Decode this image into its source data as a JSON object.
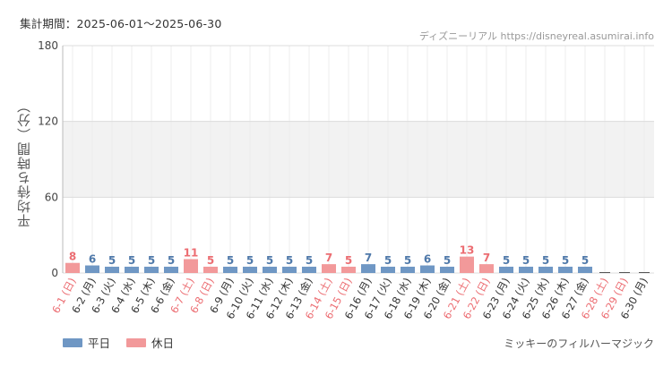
{
  "header": {
    "period": "集計期間：2025-06-01～2025-06-30",
    "source": "ディズニーリアル https://disneyreal.asumirai.info"
  },
  "footer": {
    "attraction": "ミッキーのフィルハーマジック"
  },
  "colors": {
    "weekday": "#6f97c4",
    "holiday": "#f2999a",
    "weekday_label": "#4f79aa",
    "holiday_label": "#ec6d72",
    "band": "#f2f2f2",
    "grid": "#dcdcdc"
  },
  "chart_data": {
    "type": "bar",
    "ylabel": "平均待ち時間（分）",
    "ylim": [
      0,
      180
    ],
    "yticks": [
      0,
      60,
      120,
      180
    ],
    "band": [
      60,
      120
    ],
    "grid": true,
    "legend_position": "bottom-left",
    "categories": [
      "6-1 (日)",
      "6-2 (月)",
      "6-3 (火)",
      "6-4 (水)",
      "6-5 (木)",
      "6-6 (金)",
      "6-7 (土)",
      "6-8 (日)",
      "6-9 (月)",
      "6-10 (火)",
      "6-11 (水)",
      "6-12 (木)",
      "6-13 (金)",
      "6-14 (土)",
      "6-15 (日)",
      "6-16 (月)",
      "6-17 (火)",
      "6-18 (水)",
      "6-19 (木)",
      "6-20 (金)",
      "6-21 (土)",
      "6-22 (日)",
      "6-23 (月)",
      "6-24 (火)",
      "6-25 (水)",
      "6-26 (木)",
      "6-27 (金)",
      "6-28 (土)",
      "6-29 (日)",
      "6-30 (月)"
    ],
    "holiday": [
      true,
      false,
      false,
      false,
      false,
      false,
      true,
      true,
      false,
      false,
      false,
      false,
      false,
      true,
      true,
      false,
      false,
      false,
      false,
      false,
      true,
      true,
      false,
      false,
      false,
      false,
      false,
      true,
      true,
      false
    ],
    "values": [
      8,
      6,
      5,
      5,
      5,
      5,
      11,
      5,
      5,
      5,
      5,
      5,
      5,
      7,
      5,
      7,
      5,
      5,
      6,
      5,
      13,
      7,
      5,
      5,
      5,
      5,
      5,
      null,
      null,
      null
    ],
    "series": [
      {
        "name": "平日"
      },
      {
        "name": "休日"
      }
    ]
  }
}
